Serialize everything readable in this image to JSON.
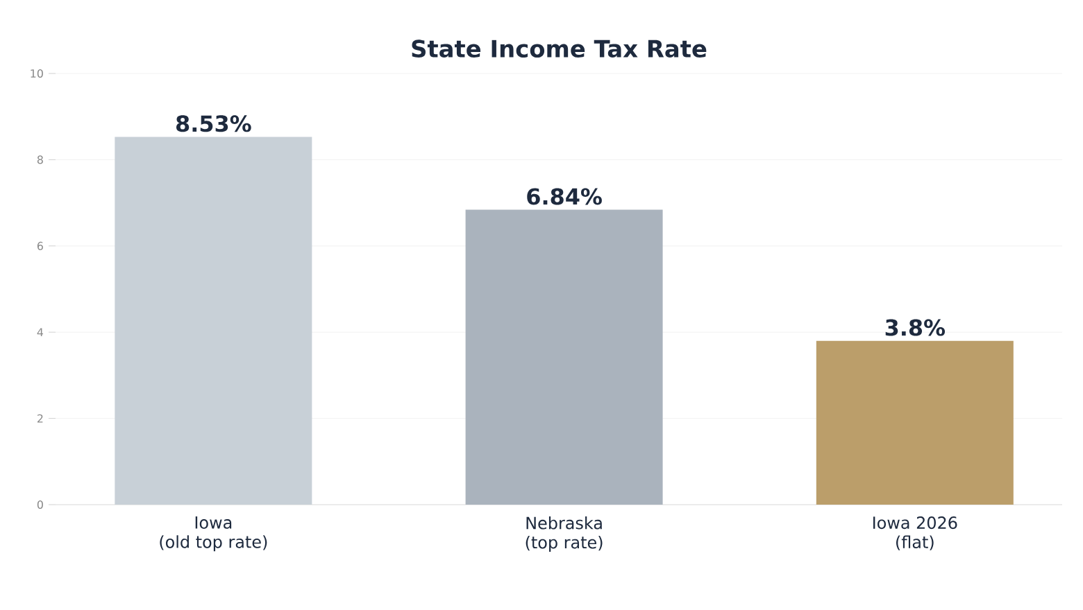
{
  "chart_data": {
    "type": "bar",
    "title": "State Income Tax Rate",
    "categories": [
      "Iowa\n(old top rate)",
      "Nebraska\n(top rate)",
      "Iowa 2026\n(flat)"
    ],
    "values": [
      8.53,
      6.84,
      3.8
    ],
    "colors": [
      "#c8d0d7",
      "#aab3bd",
      "#bb9e6a"
    ],
    "value_labels": [
      "8.53%",
      "6.84%",
      "3.8%"
    ],
    "ylim": [
      0,
      10
    ],
    "yticks": [
      0,
      2,
      4,
      6,
      8,
      10
    ],
    "grid": "y"
  }
}
